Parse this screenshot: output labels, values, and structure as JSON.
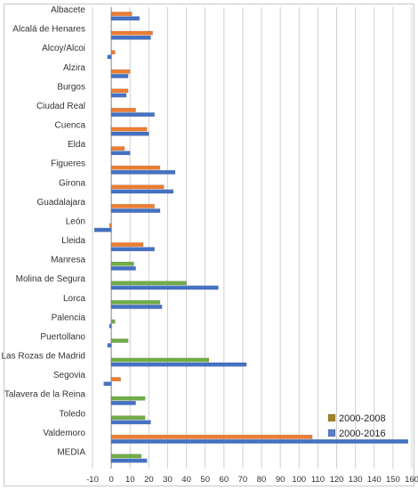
{
  "chart_data": {
    "type": "bar",
    "orientation": "horizontal",
    "title": "",
    "xlabel": "",
    "ylabel": "",
    "xlim": [
      -10,
      160
    ],
    "x_ticks": [
      -10,
      0,
      10,
      20,
      30,
      40,
      50,
      60,
      70,
      80,
      90,
      100,
      110,
      120,
      130,
      140,
      150,
      160
    ],
    "grid": "vertical",
    "legend_position": "bottom-right",
    "categories": [
      "Albacete",
      "Alcalá de Henares",
      "Alcoy/Alcoi",
      "Alzira",
      "Burgos",
      "Ciudad Real",
      "Cuenca",
      "Elda",
      "Figueres",
      "Girona",
      "Guadalajara",
      "León",
      "Lleida",
      "Manresa",
      "Molina de Segura",
      "Lorca",
      "Palencia",
      "Puertollano",
      "Las Rozas de Madrid",
      "Segovia",
      "Talavera de la Reina",
      "Toledo",
      "Valdemoro",
      "MEDIA"
    ],
    "series_colors": {
      "period_2000_2008": [
        "#ED7D31",
        "#ED7D31",
        "#ED7D31",
        "#ED7D31",
        "#ED7D31",
        "#ED7D31",
        "#ED7D31",
        "#ED7D31",
        "#ED7D31",
        "#ED7D31",
        "#ED7D31",
        "#ED7D31",
        "#ED7D31",
        "#70AD47",
        "#70AD47",
        "#70AD47",
        "#70AD47",
        "#70AD47",
        "#70AD47",
        "#ED7D31",
        "#70AD47",
        "#70AD47",
        "#ED7D31",
        "#70AD47"
      ],
      "period_2000_2016": "#4472C4"
    },
    "series": [
      {
        "name": "2000-2008",
        "legend_color": "#A5832D",
        "values": [
          11,
          22,
          2,
          10,
          9,
          13,
          19,
          7,
          26,
          28,
          23,
          -1,
          17,
          12,
          40,
          26,
          2,
          9,
          52,
          5,
          18,
          18,
          107,
          16
        ]
      },
      {
        "name": "2000-2016",
        "legend_color": "#5B7FC7",
        "values": [
          15,
          21,
          -2,
          9,
          8,
          23,
          20,
          10,
          34,
          33,
          26,
          -9,
          23,
          13,
          57,
          27,
          -1,
          -2,
          72,
          -4,
          13,
          21,
          158,
          19
        ]
      }
    ]
  }
}
